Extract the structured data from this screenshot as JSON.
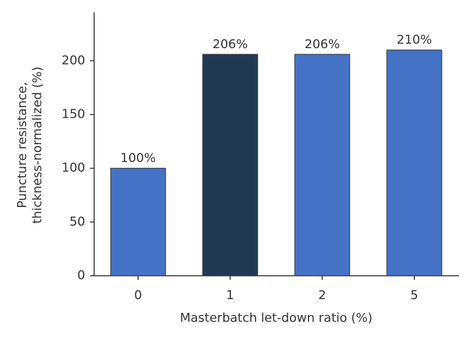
{
  "chart_data": {
    "type": "bar",
    "xlabel": "Masterbatch let-down ratio (%)",
    "ylabel": [
      "Puncture resistance,",
      "thickness-normalized (%)"
    ],
    "categories": [
      "0",
      "1",
      "2",
      "5"
    ],
    "values": [
      100,
      206,
      206,
      210
    ],
    "value_labels": [
      "100%",
      "206%",
      "206%",
      "210%"
    ],
    "colors": [
      "#4472c4",
      "#203a56",
      "#4472c4",
      "#4472c4"
    ],
    "ylim": [
      0,
      245
    ],
    "yticks": [
      0,
      50,
      100,
      150,
      200
    ],
    "grid": false
  }
}
